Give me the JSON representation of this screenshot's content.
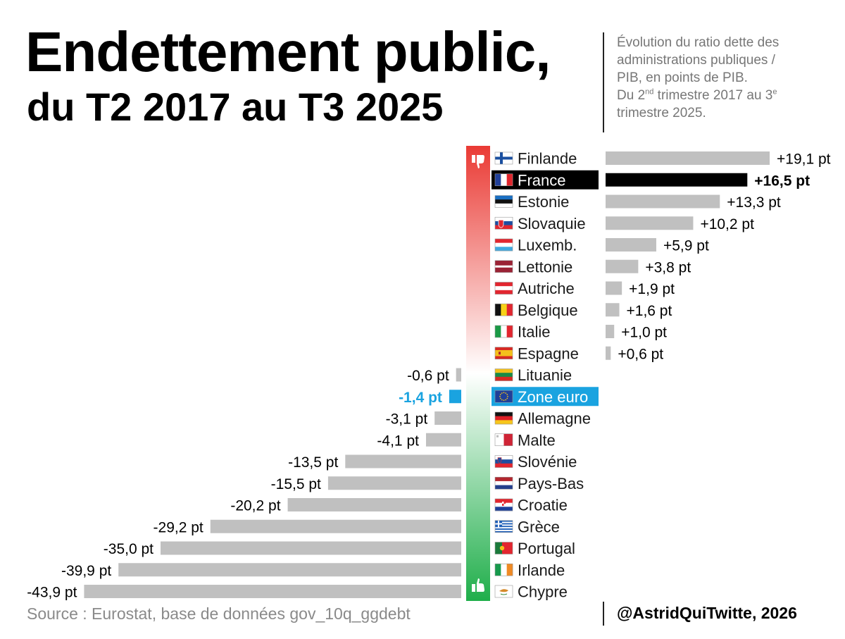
{
  "title_line1": "Endettement public,",
  "title_line2": "du T2 2017 au T3 2025",
  "subtitle": {
    "line1": "Évolution du ratio dette des",
    "line2": "administrations publiques /",
    "line3": "PIB, en points de PIB.",
    "line4_a": "Du 2",
    "line4_sup1": "nd",
    "line4_b": " trimestre 2017 au 3",
    "line4_sup2": "e",
    "line5": "trimestre 2025."
  },
  "source": "Source : Eurostat, base de données gov_10q_ggdebt",
  "credit": "@AstridQuiTwitte, 2026",
  "icons": {
    "top": "thumbs-down-icon",
    "bottom": "thumbs-up-icon"
  },
  "colors": {
    "bar_default": "#c0c0c0",
    "highlight_france": "#000000",
    "highlight_euro": "#1aa3e0",
    "gradient_top": "#ea3a34",
    "gradient_bottom": "#1fae4a"
  },
  "chart_data": {
    "type": "bar",
    "orientation": "horizontal-diverging",
    "unit": "pt",
    "categories": [
      "Finlande",
      "France",
      "Estonie",
      "Slovaquie",
      "Luxemb.",
      "Lettonie",
      "Autriche",
      "Belgique",
      "Italie",
      "Espagne",
      "Lituanie",
      "Zone euro",
      "Allemagne",
      "Malte",
      "Slovénie",
      "Pays-Bas",
      "Croatie",
      "Grèce",
      "Portugal",
      "Irlande",
      "Chypre"
    ],
    "values": [
      19.1,
      16.5,
      13.3,
      10.2,
      5.9,
      3.8,
      1.9,
      1.6,
      1.0,
      0.6,
      -0.6,
      -1.4,
      -3.1,
      -4.1,
      -13.5,
      -15.5,
      -20.2,
      -29.2,
      -35.0,
      -39.9,
      -43.9
    ],
    "value_labels": [
      "+19,1 pt",
      "+16,5 pt",
      "+13,3 pt",
      "+10,2 pt",
      "+5,9 pt",
      "+3,8 pt",
      "+1,9 pt",
      "+1,6 pt",
      "+1,0 pt",
      "+0,6 pt",
      "-0,6 pt",
      "-1,4 pt",
      "-3,1 pt",
      "-4,1 pt",
      "-13,5 pt",
      "-15,5 pt",
      "-20,2 pt",
      "-29,2 pt",
      "-35,0 pt",
      "-39,9 pt",
      "-43,9 pt"
    ],
    "flags": [
      "fi",
      "fr",
      "ee",
      "sk",
      "lu",
      "lv",
      "at",
      "be",
      "it",
      "es",
      "lt",
      "eu",
      "de",
      "mt",
      "si",
      "nl",
      "hr",
      "gr",
      "pt",
      "ie",
      "cy"
    ],
    "highlight": {
      "France": "black",
      "Zone euro": "blue"
    }
  }
}
